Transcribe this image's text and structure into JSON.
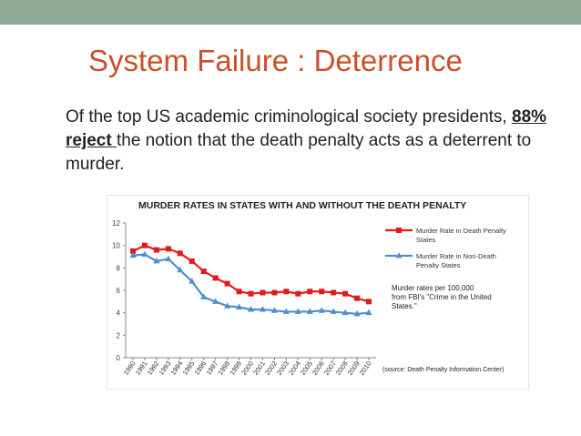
{
  "slide": {
    "title": "System Failure : Deterrence",
    "body_prefix": "Of the top US academic criminological society presidents, ",
    "body_emphasis": "88% reject ",
    "body_suffix": "the notion that the death penalty acts as a deterrent to murder.",
    "top_bar_color": "#8faa94",
    "title_color": "#c8502a"
  },
  "chart_data": {
    "type": "line",
    "title": "MURDER RATES IN STATES WITH AND WITHOUT THE DEATH PENALTY",
    "categories": [
      "1990",
      "1991",
      "1992",
      "1993",
      "1994",
      "1995",
      "1996",
      "1997",
      "1998",
      "1999",
      "2000",
      "2001",
      "2002",
      "2003",
      "2004",
      "2005",
      "2006",
      "2007",
      "2008",
      "2009",
      "2010"
    ],
    "series": [
      {
        "name": "Murder Rate in Death Penalty States",
        "color": "#e31a1c",
        "marker": "square",
        "values": [
          9.5,
          10.0,
          9.6,
          9.7,
          9.3,
          8.6,
          7.7,
          7.1,
          6.6,
          5.9,
          5.7,
          5.8,
          5.8,
          5.9,
          5.7,
          5.9,
          5.9,
          5.8,
          5.7,
          5.3,
          5.0
        ]
      },
      {
        "name": "Murder Rate in Non-Death Penalty States",
        "color": "#4f8fd0",
        "marker": "triangle",
        "values": [
          9.1,
          9.2,
          8.6,
          8.8,
          7.8,
          6.8,
          5.4,
          5.0,
          4.6,
          4.5,
          4.3,
          4.3,
          4.2,
          4.1,
          4.1,
          4.1,
          4.2,
          4.1,
          4.0,
          3.9,
          4.0
        ]
      }
    ],
    "ylim": [
      0,
      12
    ],
    "yticks": [
      0,
      2,
      4,
      6,
      8,
      10,
      12
    ],
    "legend_position": "right",
    "note": "Murder rates per 100,000 from FBI's \"Crime in the United States.\"",
    "source": "(source: Death Penalty Information Center)",
    "grid": false
  }
}
